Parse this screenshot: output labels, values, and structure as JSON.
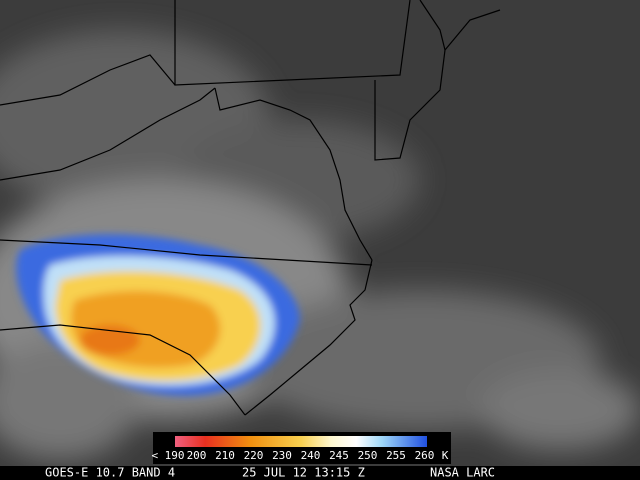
{
  "colorbar": {
    "labels": [
      "< 190",
      "200",
      "210",
      "220",
      "230",
      "240",
      "245",
      "250",
      "255",
      "260"
    ],
    "unit": "K"
  },
  "footer": {
    "satellite": "GOES-E 10.7 BAND 4",
    "datetime": "25 JUL 12 13:15 Z",
    "source": "NASA LARC"
  }
}
